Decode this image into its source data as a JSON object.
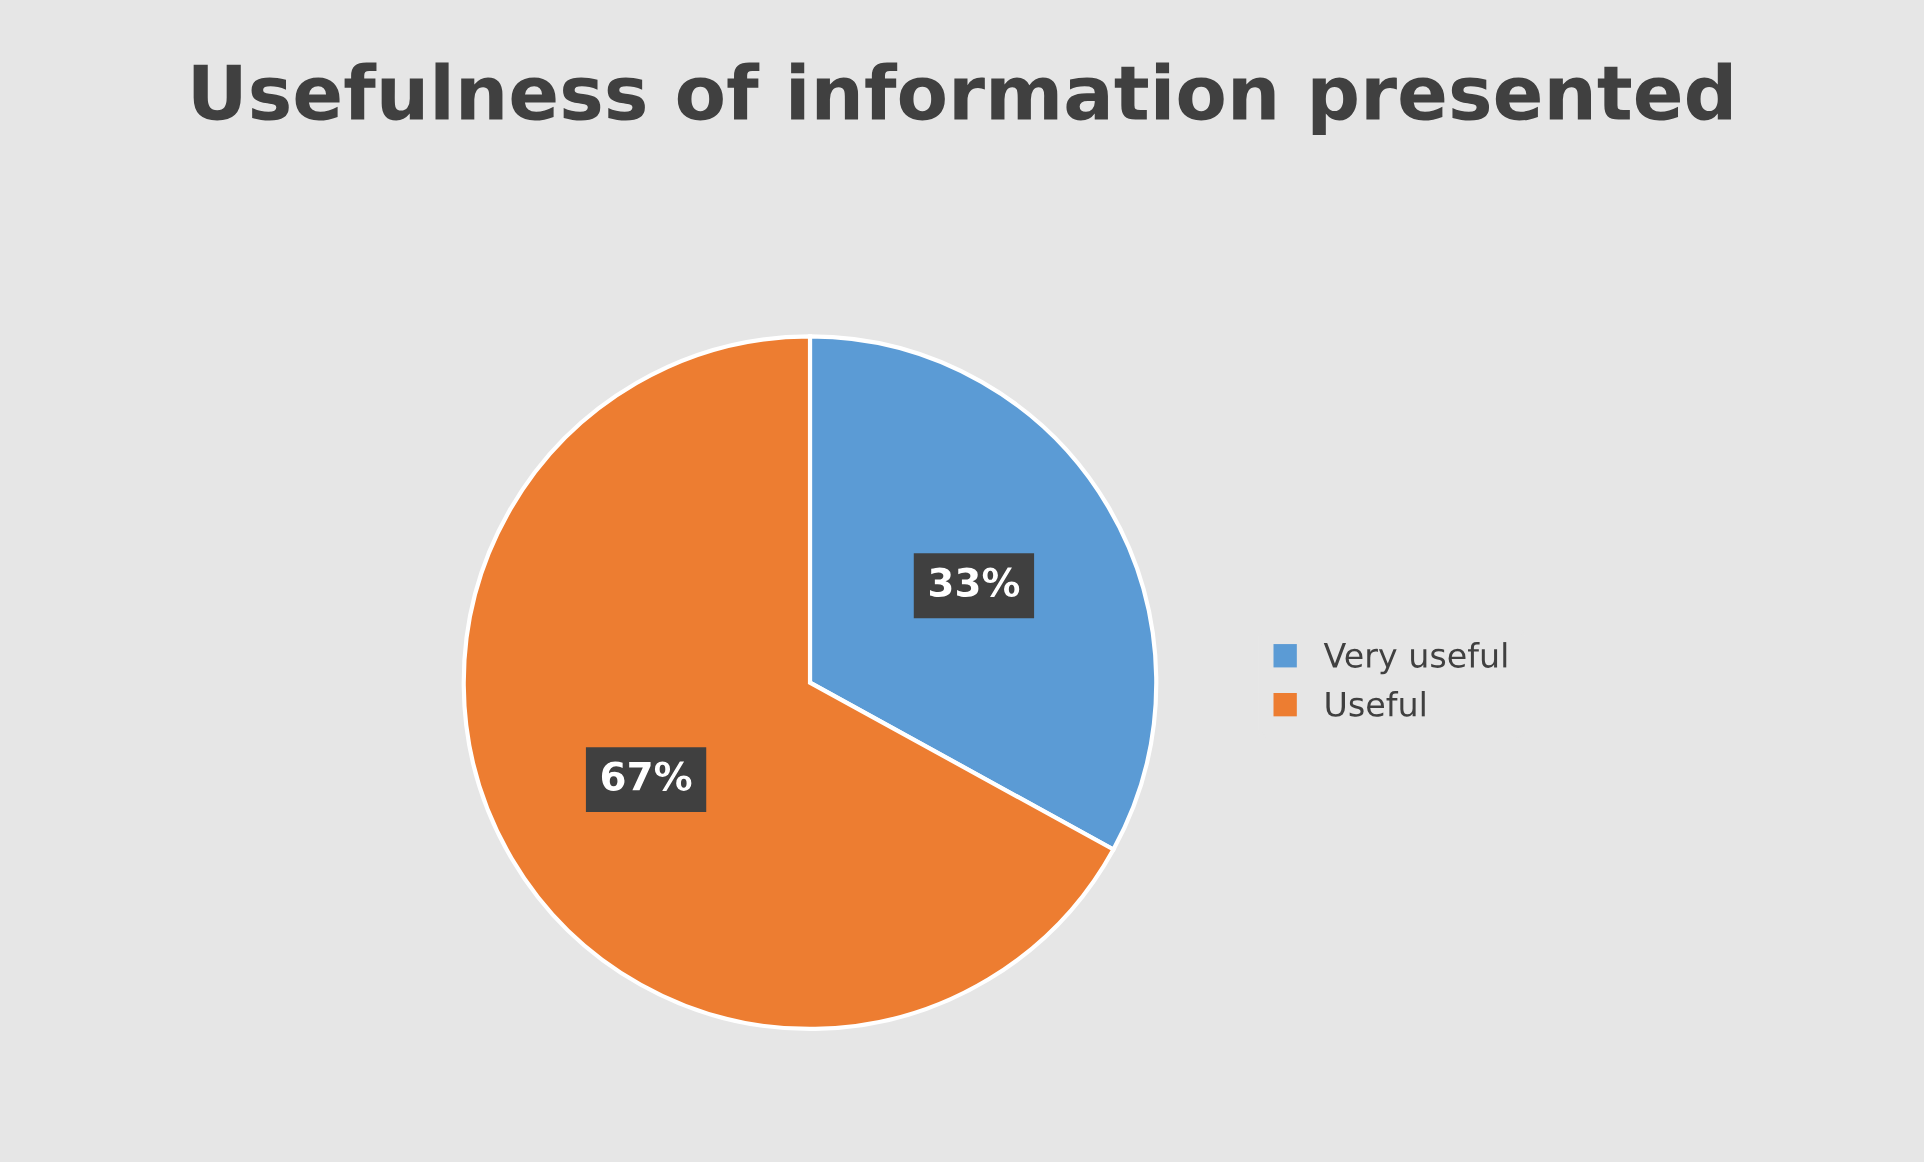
{
  "chart_data": {
    "type": "pie",
    "title": "Usefulness of information presented",
    "categories": [
      "Very useful",
      "Useful"
    ],
    "values": [
      33,
      67
    ],
    "colors": [
      "#5b9bd5",
      "#ed7d31"
    ],
    "value_labels": [
      "33%",
      "67%"
    ],
    "legend": "right"
  }
}
